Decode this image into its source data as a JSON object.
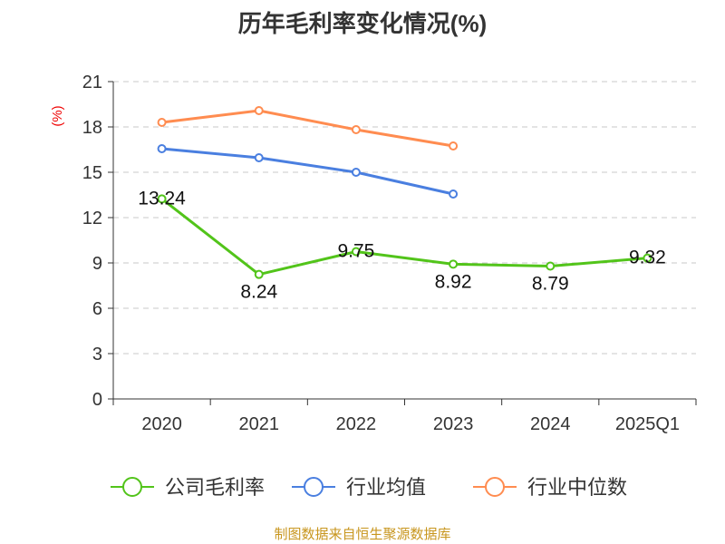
{
  "chart_data": {
    "type": "line",
    "title": "历年毛利率变化情况(%)",
    "ylabel": "(%)",
    "xlabel": "",
    "categories": [
      "2020",
      "2021",
      "2022",
      "2023",
      "2024",
      "2025Q1"
    ],
    "ylim": [
      0,
      21
    ],
    "yticks": [
      0,
      3,
      6,
      9,
      12,
      15,
      18,
      21
    ],
    "grid": true,
    "legend_position": "bottom",
    "series": [
      {
        "name": "公司毛利率",
        "color": "#52c41a",
        "values": [
          13.24,
          8.24,
          9.75,
          8.92,
          8.79,
          9.32
        ],
        "labels": [
          "13.24",
          "8.24",
          "9.75",
          "8.92",
          "8.79",
          "9.32"
        ]
      },
      {
        "name": "行业均值",
        "color": "#4a7fe0",
        "values": [
          16.56,
          15.96,
          15.0,
          13.56,
          null,
          null
        ]
      },
      {
        "name": "行业中位数",
        "color": "#ff8c50",
        "values": [
          18.3,
          19.08,
          17.82,
          16.74,
          null,
          null
        ]
      }
    ]
  },
  "source": "制图数据来自恒生聚源数据库"
}
